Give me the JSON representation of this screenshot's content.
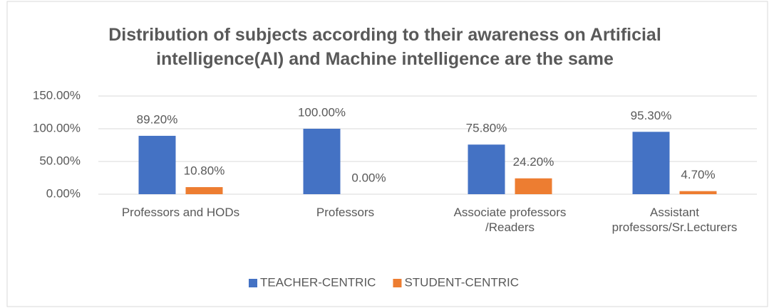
{
  "chart_data": {
    "type": "bar",
    "title": "Distribution of subjects according to their awareness on Artificial intelligence(AI) and Machine intelligence are the same",
    "categories": [
      "Professors and HODs",
      "Professors",
      "Associate professors /Readers",
      "Assistant professors/Sr.Lecturers"
    ],
    "series": [
      {
        "name": "TEACHER-CENTRIC",
        "color": "#4472c4",
        "values": [
          89.2,
          100,
          75.8,
          95.3
        ],
        "value_labels": [
          "89.20%",
          "100.00%",
          "75.80%",
          "95.30%"
        ]
      },
      {
        "name": "STUDENT-CENTRIC",
        "color": "#ed7d31",
        "values": [
          10.8,
          0,
          24.2,
          4.7
        ],
        "value_labels": [
          "10.80%",
          "0.00%",
          "24.20%",
          "4.70%"
        ]
      }
    ],
    "ylim": [
      0,
      150
    ],
    "yticks": [
      {
        "value": 0,
        "label": "0.00%"
      },
      {
        "value": 50,
        "label": "50.00%"
      },
      {
        "value": 100,
        "label": "100.00%"
      },
      {
        "value": 150,
        "label": "150.00%"
      }
    ],
    "grid": true,
    "legend": "bottom"
  }
}
